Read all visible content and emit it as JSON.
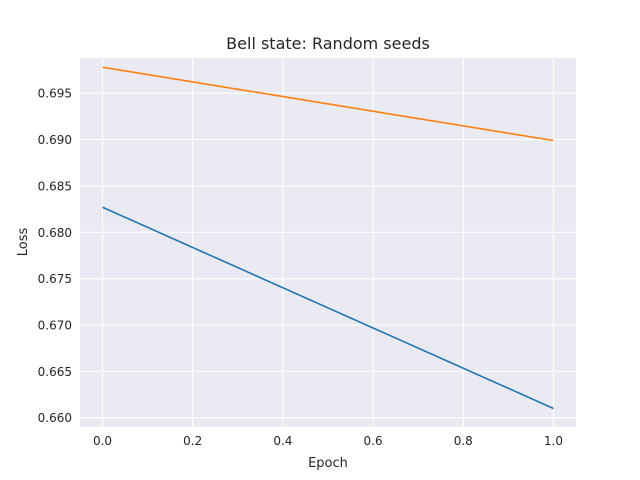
{
  "chart_data": {
    "type": "line",
    "title": "Bell state: Random seeds",
    "xlabel": "Epoch",
    "ylabel": "Loss",
    "x": [
      0.0,
      1.0
    ],
    "xlim": [
      -0.05,
      1.05
    ],
    "ylim": [
      0.659,
      0.6988
    ],
    "xticks": [
      0.0,
      0.2,
      0.4,
      0.6,
      0.8,
      1.0
    ],
    "xtick_labels": [
      "0.0",
      "0.2",
      "0.4",
      "0.6",
      "0.8",
      "1.0"
    ],
    "yticks": [
      0.66,
      0.665,
      0.67,
      0.675,
      0.68,
      0.685,
      0.69,
      0.695
    ],
    "ytick_labels": [
      "0.660",
      "0.665",
      "0.670",
      "0.675",
      "0.680",
      "0.685",
      "0.690",
      "0.695"
    ],
    "grid": true,
    "background": "#eaeaf2",
    "series": [
      {
        "values": [
          0.6827,
          0.661
        ],
        "color": "#1f77b4"
      },
      {
        "values": [
          0.6978,
          0.6899
        ],
        "color": "#ff7f0e"
      }
    ]
  }
}
